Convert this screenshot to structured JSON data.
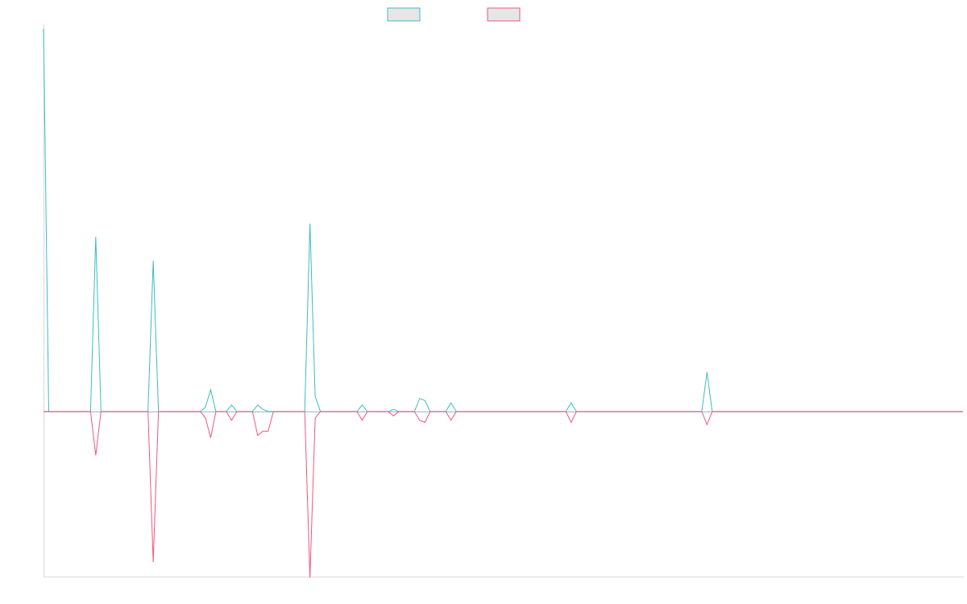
{
  "chart_data": {
    "type": "line",
    "title": "",
    "xlabel": "",
    "ylabel": "",
    "grid": false,
    "legend_position": "top-center",
    "x_count": 177,
    "ylim": [
      -1,
      1.75
    ],
    "colors": {
      "series_1": "#3bbcc3",
      "series_2": "#f0567d",
      "baseline": "#a0b7c4"
    },
    "series": [
      {
        "name": "",
        "points": [
          [
            0,
            1.75
          ],
          [
            1,
            0
          ],
          [
            9,
            0
          ],
          [
            10,
            0.8
          ],
          [
            11,
            0
          ],
          [
            20,
            0
          ],
          [
            21,
            0.69
          ],
          [
            22,
            0
          ],
          [
            30,
            0
          ],
          [
            31,
            0.02
          ],
          [
            32,
            0.1
          ],
          [
            33,
            0
          ],
          [
            35,
            0
          ],
          [
            36,
            0.03
          ],
          [
            37,
            0
          ],
          [
            40,
            0
          ],
          [
            41,
            0.03
          ],
          [
            42,
            0.01
          ],
          [
            43,
            0
          ],
          [
            50,
            0
          ],
          [
            51,
            0.86
          ],
          [
            52,
            0.07
          ],
          [
            53,
            0
          ],
          [
            60,
            0
          ],
          [
            61,
            0.03
          ],
          [
            62,
            0
          ],
          [
            66,
            0
          ],
          [
            67,
            0.01
          ],
          [
            68,
            0
          ],
          [
            71,
            0
          ],
          [
            72,
            0.06
          ],
          [
            73,
            0.05
          ],
          [
            74,
            0
          ],
          [
            77,
            0
          ],
          [
            78,
            0.04
          ],
          [
            79,
            0
          ],
          [
            100,
            0
          ],
          [
            101,
            0.04
          ],
          [
            102,
            0
          ],
          [
            126,
            0
          ],
          [
            127,
            0.18
          ],
          [
            128,
            0
          ],
          [
            176,
            0
          ]
        ],
        "color": "#3bbcc3"
      },
      {
        "name": "",
        "points": [
          [
            0,
            0
          ],
          [
            9,
            0
          ],
          [
            10,
            -0.2
          ],
          [
            11,
            0
          ],
          [
            20,
            0
          ],
          [
            21,
            -0.69
          ],
          [
            22,
            0
          ],
          [
            30,
            0
          ],
          [
            31,
            -0.03
          ],
          [
            32,
            -0.12
          ],
          [
            33,
            0
          ],
          [
            35,
            0
          ],
          [
            36,
            -0.04
          ],
          [
            37,
            0
          ],
          [
            40,
            0
          ],
          [
            41,
            -0.11
          ],
          [
            42,
            -0.09
          ],
          [
            43,
            -0.09
          ],
          [
            44,
            0
          ],
          [
            50,
            0
          ],
          [
            51,
            -0.76
          ],
          [
            52,
            -0.03
          ],
          [
            53,
            0
          ],
          [
            60,
            0
          ],
          [
            61,
            -0.04
          ],
          [
            62,
            0
          ],
          [
            66,
            0
          ],
          [
            67,
            -0.02
          ],
          [
            68,
            0
          ],
          [
            71,
            0
          ],
          [
            72,
            -0.04
          ],
          [
            73,
            -0.05
          ],
          [
            74,
            0
          ],
          [
            77,
            0
          ],
          [
            78,
            -0.04
          ],
          [
            79,
            0
          ],
          [
            100,
            0
          ],
          [
            101,
            -0.05
          ],
          [
            102,
            0
          ],
          [
            126,
            0
          ],
          [
            127,
            -0.06
          ],
          [
            128,
            0
          ],
          [
            176,
            0
          ]
        ],
        "color": "#f0567d"
      }
    ]
  }
}
